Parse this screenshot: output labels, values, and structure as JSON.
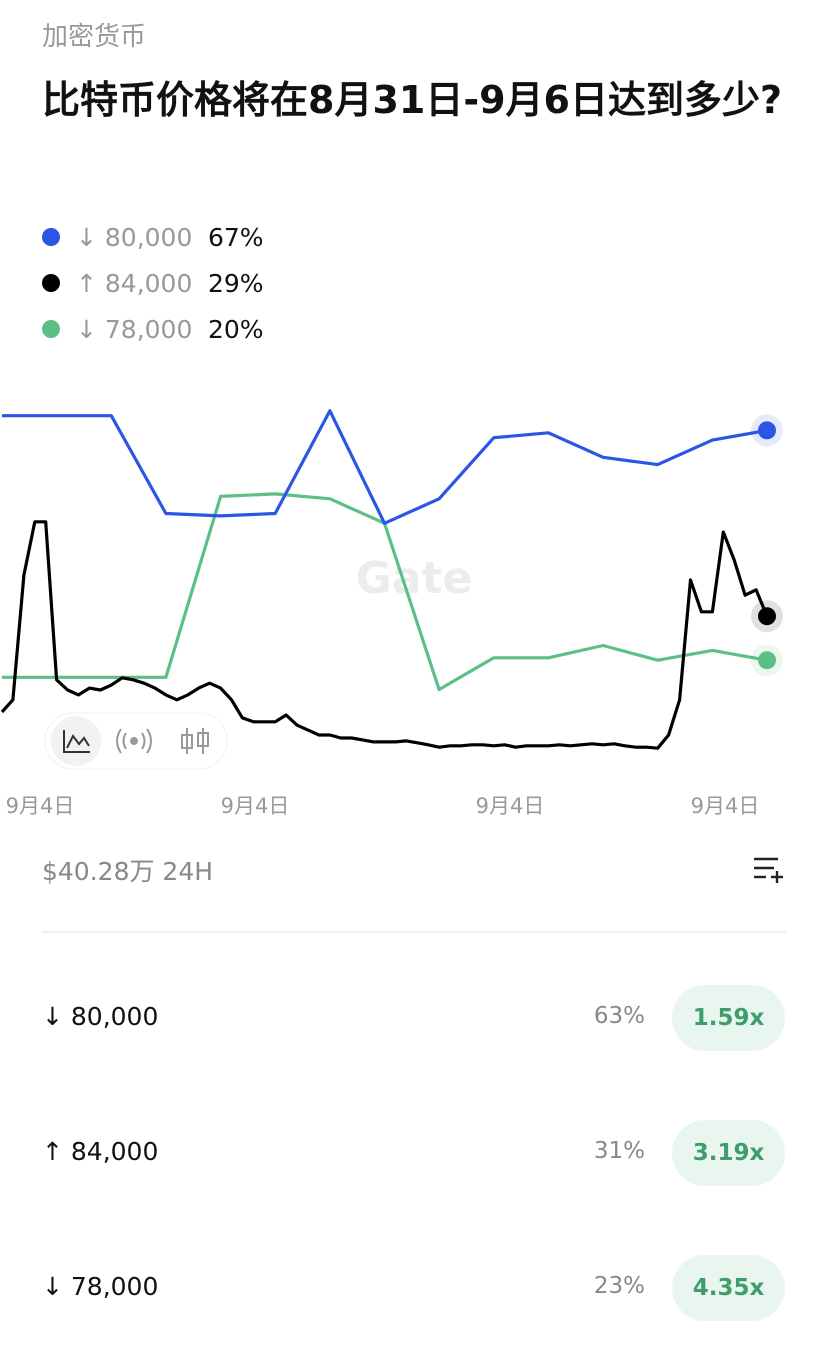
{
  "header": {
    "category": "加密货币",
    "title": "比特币价格将在8月31日-9月6日达到多少?"
  },
  "chart": {
    "type": "line",
    "ylim": [
      0,
      100
    ],
    "watermark": "Gate",
    "series": [
      {
        "name": "↓ 80,000",
        "color": "#2a55e5",
        "current": "67%",
        "values": [
          70,
          70,
          70,
          50,
          49.5,
          50,
          71,
          48,
          53,
          65.5,
          66.5,
          61.5,
          60,
          65,
          67
        ]
      },
      {
        "name": "↑ 84,000",
        "color": "#000000",
        "current": "29%",
        "values": [
          9.4,
          11.9,
          37.4,
          48.3,
          48.3,
          16,
          13.9,
          12.9,
          14.3,
          13.9,
          14.9,
          16.4,
          16,
          15.3,
          14.3,
          12.9,
          11.9,
          12.9,
          14.3,
          15.3,
          14.3,
          11.9,
          8.2,
          7.4,
          7.4,
          7.4,
          8.8,
          6.7,
          5.7,
          4.7,
          4.7,
          4.1,
          4.1,
          3.7,
          3.3,
          3.3,
          3.3,
          3.5,
          3.1,
          2.7,
          2.2,
          2.5,
          2.5,
          2.7,
          2.7,
          2.5,
          2.7,
          2.2,
          2.5,
          2.5,
          2.5,
          2.7,
          2.5,
          2.7,
          2.9,
          2.7,
          2.9,
          2.5,
          2.2,
          2.2,
          2,
          4.7,
          11.9,
          36.4,
          29.9,
          29.9,
          46.2,
          40.5,
          33.3,
          34.4,
          29
        ]
      },
      {
        "name": "↓ 78,000",
        "color": "#5cbf85",
        "current": "20%",
        "values": [
          16.5,
          16.5,
          16.5,
          16.5,
          53.5,
          54,
          53,
          48,
          14,
          20.5,
          20.5,
          23,
          20,
          22,
          20
        ]
      }
    ],
    "xlabels": [
      "9月4日",
      "9月4日",
      "9月4日",
      "9月4日"
    ]
  },
  "volume": "$40.28万 24H",
  "outcomes": [
    {
      "label": "↓ 80,000",
      "chance": "63%",
      "payout": "1.59x"
    },
    {
      "label": "↑ 84,000",
      "chance": "31%",
      "payout": "3.19x"
    },
    {
      "label": "↓ 78,000",
      "chance": "23%",
      "payout": "4.35x"
    }
  ]
}
